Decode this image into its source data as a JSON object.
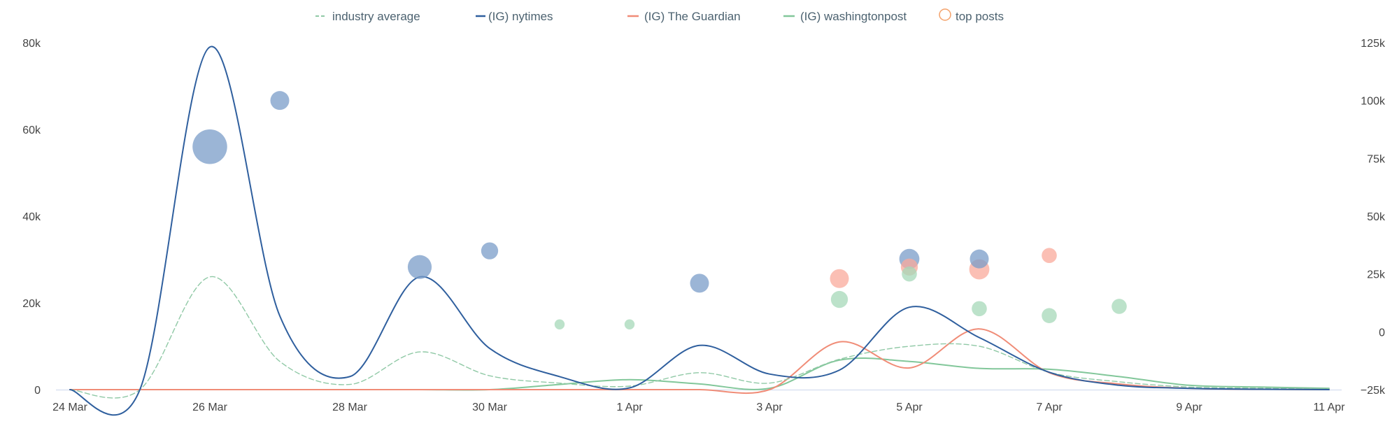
{
  "chart_data": {
    "type": "line",
    "title": "",
    "x_ticks": [
      "24 Mar",
      "26 Mar",
      "28 Mar",
      "30 Mar",
      "1 Apr",
      "3 Apr",
      "5 Apr",
      "7 Apr",
      "9 Apr",
      "11 Apr"
    ],
    "y_left": {
      "ticks": [
        "0",
        "20k",
        "40k",
        "60k",
        "80k"
      ],
      "values": [
        0,
        20000,
        40000,
        60000,
        80000
      ],
      "range": [
        0,
        80000
      ]
    },
    "y_right": {
      "ticks": [
        "−25k",
        "0",
        "25k",
        "50k",
        "75k",
        "100k",
        "125k"
      ],
      "values": [
        -25000,
        0,
        25000,
        50000,
        75000,
        100000,
        125000
      ],
      "range": [
        -25000,
        125000
      ]
    },
    "grid": false,
    "legend_position": "top-center",
    "series": [
      {
        "name": "industry average",
        "key": "industry",
        "color": "#90c9a6",
        "dashed": true,
        "axis": "left",
        "points": [
          [
            "24 Mar",
            0
          ],
          [
            "25 Mar",
            0
          ],
          [
            "26 Mar",
            26000
          ],
          [
            "27 Mar",
            6500
          ],
          [
            "28 Mar",
            1200
          ],
          [
            "29 Mar",
            8700
          ],
          [
            "30 Mar",
            3200
          ],
          [
            "31 Mar",
            1500
          ],
          [
            "1 Apr",
            800
          ],
          [
            "2 Apr",
            3900
          ],
          [
            "3 Apr",
            1500
          ],
          [
            "4 Apr",
            7000
          ],
          [
            "5 Apr",
            10000
          ],
          [
            "6 Apr",
            10000
          ],
          [
            "7 Apr",
            4000
          ],
          [
            "8 Apr",
            1800
          ],
          [
            "9 Apr",
            600
          ],
          [
            "10 Apr",
            300
          ],
          [
            "11 Apr",
            200
          ]
        ]
      },
      {
        "name": "(IG) nytimes",
        "key": "nytimes",
        "color": "#2f5f9e",
        "dashed": false,
        "axis": "left",
        "points": [
          [
            "24 Mar",
            0
          ],
          [
            "25 Mar",
            0
          ],
          [
            "26 Mar",
            79000
          ],
          [
            "27 Mar",
            17000
          ],
          [
            "28 Mar",
            3000
          ],
          [
            "29 Mar",
            26000
          ],
          [
            "30 Mar",
            9500
          ],
          [
            "31 Mar",
            3000
          ],
          [
            "1 Apr",
            400
          ],
          [
            "2 Apr",
            10200
          ],
          [
            "3 Apr",
            3600
          ],
          [
            "4 Apr",
            4500
          ],
          [
            "5 Apr",
            19000
          ],
          [
            "6 Apr",
            12000
          ],
          [
            "7 Apr",
            4000
          ],
          [
            "8 Apr",
            1000
          ],
          [
            "9 Apr",
            300
          ],
          [
            "10 Apr",
            100
          ],
          [
            "11 Apr",
            0
          ]
        ]
      },
      {
        "name": "(IG) The Guardian",
        "key": "guardian",
        "color": "#f08c77",
        "dashed": false,
        "axis": "left",
        "points": [
          [
            "24 Mar",
            0
          ],
          [
            "25 Mar",
            0
          ],
          [
            "26 Mar",
            0
          ],
          [
            "27 Mar",
            0
          ],
          [
            "28 Mar",
            0
          ],
          [
            "29 Mar",
            0
          ],
          [
            "30 Mar",
            0
          ],
          [
            "31 Mar",
            0
          ],
          [
            "1 Apr",
            0
          ],
          [
            "2 Apr",
            0
          ],
          [
            "3 Apr",
            0
          ],
          [
            "4 Apr",
            11000
          ],
          [
            "5 Apr",
            5000
          ],
          [
            "6 Apr",
            14000
          ],
          [
            "7 Apr",
            3900
          ],
          [
            "8 Apr",
            1300
          ],
          [
            "9 Apr",
            300
          ],
          [
            "10 Apr",
            100
          ],
          [
            "11 Apr",
            0
          ]
        ]
      },
      {
        "name": "(IG) washingtonpost",
        "key": "wapo",
        "color": "#82c79a",
        "dashed": false,
        "axis": "left",
        "points": [
          [
            "24 Mar",
            0
          ],
          [
            "25 Mar",
            0
          ],
          [
            "26 Mar",
            0
          ],
          [
            "27 Mar",
            0
          ],
          [
            "28 Mar",
            0
          ],
          [
            "29 Mar",
            0
          ],
          [
            "30 Mar",
            0
          ],
          [
            "31 Mar",
            1200
          ],
          [
            "1 Apr",
            2300
          ],
          [
            "2 Apr",
            1300
          ],
          [
            "3 Apr",
            300
          ],
          [
            "4 Apr",
            6800
          ],
          [
            "5 Apr",
            6500
          ],
          [
            "6 Apr",
            4900
          ],
          [
            "7 Apr",
            4700
          ],
          [
            "8 Apr",
            3000
          ],
          [
            "9 Apr",
            1000
          ],
          [
            "10 Apr",
            600
          ],
          [
            "11 Apr",
            300
          ]
        ]
      }
    ],
    "top_posts": {
      "name": "top posts",
      "legend_color": "#f4a26b",
      "axis": "right",
      "points": [
        {
          "series": "nytimes",
          "x": "26 Mar",
          "y": 80000,
          "size": 5.5
        },
        {
          "series": "nytimes",
          "x": "27 Mar",
          "y": 100000,
          "size": 3
        },
        {
          "series": "nytimes",
          "x": "29 Mar",
          "y": 28000,
          "size": 3.8
        },
        {
          "series": "nytimes",
          "x": "30 Mar",
          "y": 35000,
          "size": 2.7
        },
        {
          "series": "wapo",
          "x": "31 Mar",
          "y": 3200,
          "size": 1.6
        },
        {
          "series": "wapo",
          "x": "1 Apr",
          "y": 3200,
          "size": 1.6
        },
        {
          "series": "nytimes",
          "x": "2 Apr",
          "y": 21000,
          "size": 3
        },
        {
          "series": "guardian",
          "x": "4 Apr",
          "y": 23000,
          "size": 3
        },
        {
          "series": "wapo",
          "x": "4 Apr",
          "y": 14000,
          "size": 2.7
        },
        {
          "series": "nytimes",
          "x": "5 Apr",
          "y": 31500,
          "size": 3.2
        },
        {
          "series": "guardian",
          "x": "5 Apr",
          "y": 28000,
          "size": 2.7
        },
        {
          "series": "wapo",
          "x": "5 Apr",
          "y": 25000,
          "size": 2.4
        },
        {
          "series": "guardian",
          "x": "6 Apr",
          "y": 27000,
          "size": 3.2
        },
        {
          "series": "nytimes",
          "x": "6 Apr",
          "y": 31500,
          "size": 3
        },
        {
          "series": "wapo",
          "x": "6 Apr",
          "y": 10000,
          "size": 2.4
        },
        {
          "series": "guardian",
          "x": "7 Apr",
          "y": 33000,
          "size": 2.4
        },
        {
          "series": "wapo",
          "x": "7 Apr",
          "y": 7000,
          "size": 2.4
        },
        {
          "series": "wapo",
          "x": "8 Apr",
          "y": 11000,
          "size": 2.4
        }
      ]
    }
  }
}
